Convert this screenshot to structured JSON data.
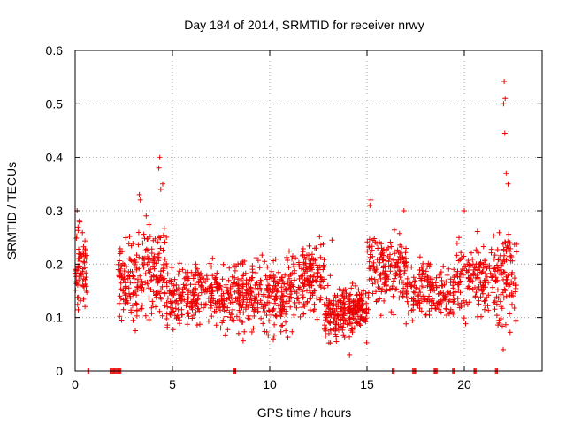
{
  "chart_data": {
    "type": "scatter",
    "title": "Day 184 of 2014, SRMTID for receiver nrwy",
    "xlabel": "GPS time / hours",
    "ylabel": "SRMTID / TECUs",
    "xlim": [
      0,
      24
    ],
    "ylim": [
      0,
      0.6
    ],
    "x_ticks": [
      0,
      5,
      10,
      15,
      20
    ],
    "x_tick_labels": [
      "0",
      "5",
      "10",
      "15",
      "20"
    ],
    "y_ticks": [
      0,
      0.1,
      0.2,
      0.3,
      0.4,
      0.5,
      0.6
    ],
    "y_tick_labels": [
      "0",
      "0.1",
      "0.2",
      "0.3",
      "0.4",
      "0.5",
      "0.6"
    ],
    "grid": true,
    "marker": "plus",
    "series": [
      {
        "name": "SRMTID",
        "color": "#ee0000",
        "profile": [
          {
            "x_range": [
              0.0,
              0.6
            ],
            "y_center": 0.2,
            "y_spread": 0.09,
            "count": 70
          },
          {
            "x_range": [
              2.2,
              3.5
            ],
            "y_center": 0.17,
            "y_spread": 0.08,
            "count": 120
          },
          {
            "x_range": [
              3.5,
              4.7
            ],
            "y_center": 0.19,
            "y_spread": 0.09,
            "count": 110
          },
          {
            "x_range": [
              4.7,
              8.5
            ],
            "y_center": 0.14,
            "y_spread": 0.06,
            "count": 320
          },
          {
            "x_range": [
              8.5,
              11.0
            ],
            "y_center": 0.14,
            "y_spread": 0.07,
            "count": 230
          },
          {
            "x_range": [
              11.0,
              12.8
            ],
            "y_center": 0.17,
            "y_spread": 0.07,
            "count": 170
          },
          {
            "x_range": [
              12.8,
              15.0
            ],
            "y_center": 0.11,
            "y_spread": 0.05,
            "count": 250
          },
          {
            "x_range": [
              15.0,
              17.0
            ],
            "y_center": 0.19,
            "y_spread": 0.07,
            "count": 170
          },
          {
            "x_range": [
              17.0,
              19.5
            ],
            "y_center": 0.15,
            "y_spread": 0.06,
            "count": 180
          },
          {
            "x_range": [
              19.5,
              21.5
            ],
            "y_center": 0.17,
            "y_spread": 0.07,
            "count": 150
          },
          {
            "x_range": [
              21.5,
              22.7
            ],
            "y_center": 0.17,
            "y_spread": 0.1,
            "count": 110
          }
        ],
        "highlights": [
          {
            "x": 22.05,
            "y": 0.542
          },
          {
            "x": 22.1,
            "y": 0.51
          },
          {
            "x": 22.02,
            "y": 0.5
          },
          {
            "x": 22.08,
            "y": 0.445
          },
          {
            "x": 22.15,
            "y": 0.37
          },
          {
            "x": 22.25,
            "y": 0.35
          },
          {
            "x": 4.35,
            "y": 0.4
          },
          {
            "x": 4.3,
            "y": 0.38
          },
          {
            "x": 4.5,
            "y": 0.35
          },
          {
            "x": 4.4,
            "y": 0.34
          },
          {
            "x": 3.3,
            "y": 0.33
          },
          {
            "x": 3.35,
            "y": 0.32
          },
          {
            "x": 15.2,
            "y": 0.32
          },
          {
            "x": 15.15,
            "y": 0.31
          },
          {
            "x": 16.9,
            "y": 0.3
          },
          {
            "x": 0.1,
            "y": 0.3
          },
          {
            "x": 13.2,
            "y": 0.245
          },
          {
            "x": 14.1,
            "y": 0.03
          },
          {
            "x": 22.0,
            "y": 0.04
          },
          {
            "x": 20.0,
            "y": 0.3
          }
        ],
        "zero_segments": [
          [
            0.65,
            0.7
          ],
          [
            1.8,
            2.35
          ],
          [
            8.15,
            8.25
          ],
          [
            16.3,
            16.4
          ],
          [
            17.35,
            17.5
          ],
          [
            18.45,
            18.6
          ],
          [
            19.4,
            19.5
          ],
          [
            20.5,
            20.6
          ],
          [
            21.6,
            21.7
          ]
        ]
      }
    ]
  }
}
